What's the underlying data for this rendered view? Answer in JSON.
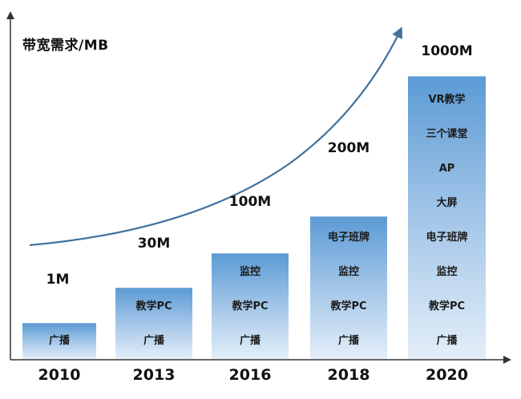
{
  "chart_data": {
    "type": "bar",
    "ylabel": "带宽需求/MB",
    "categories": [
      "2010",
      "2013",
      "2016",
      "2018",
      "2020"
    ],
    "values": [
      1,
      30,
      100,
      200,
      1000
    ],
    "value_labels": [
      "1M",
      "30M",
      "100M",
      "200M",
      "1000M"
    ],
    "bar_items": [
      [
        "广播"
      ],
      [
        "教学PC",
        "广播"
      ],
      [
        "监控",
        "教学PC",
        "广播"
      ],
      [
        "电子班牌",
        "监控",
        "教学PC",
        "广播"
      ],
      [
        "VR教学",
        "三个课堂",
        "AP",
        "大屏",
        "电子班牌",
        "监控",
        "教学PC",
        "广播"
      ]
    ],
    "trend_arrow": true,
    "grid": false
  }
}
